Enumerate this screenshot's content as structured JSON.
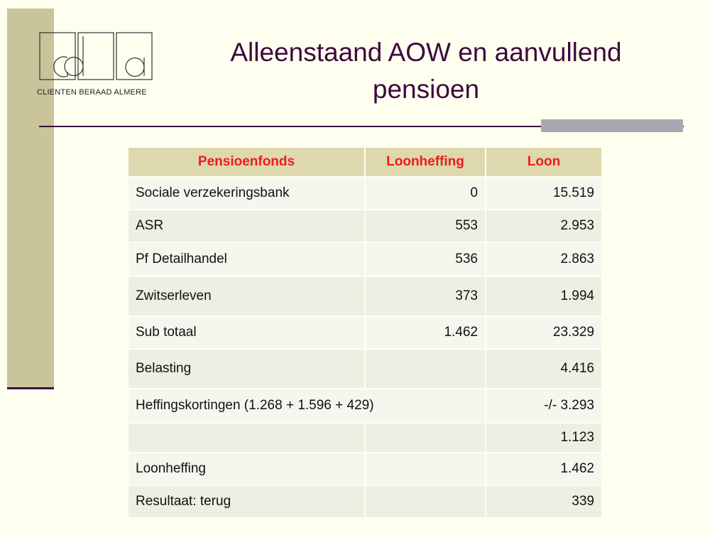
{
  "logo": {
    "letters": "cba",
    "subtitle": "CLIENTEN BERAAD ALMERE"
  },
  "title": "Alleenstaand AOW en aanvullend pensioen",
  "table": {
    "header": [
      "Pensioenfonds",
      "Loonheffing",
      "Loon"
    ],
    "rows": [
      [
        "Sociale verzekeringsbank",
        "0",
        "15.519"
      ],
      [
        "ASR",
        "553",
        "2.953"
      ],
      [
        "Pf Detailhandel",
        "536",
        "2.863"
      ],
      [
        "Zwitserleven",
        "373",
        "1.994"
      ],
      [
        "Sub totaal",
        "1.462",
        "23.329"
      ],
      [
        "Belasting",
        "4.416"
      ],
      [
        "Heffingskortingen (1.268 + 1.596 + 429)",
        "-/- 3.293"
      ],
      [
        "1.123"
      ],
      [
        "Loonheffing",
        "1.462"
      ],
      [
        "Resultaat: terug",
        "339"
      ]
    ]
  }
}
